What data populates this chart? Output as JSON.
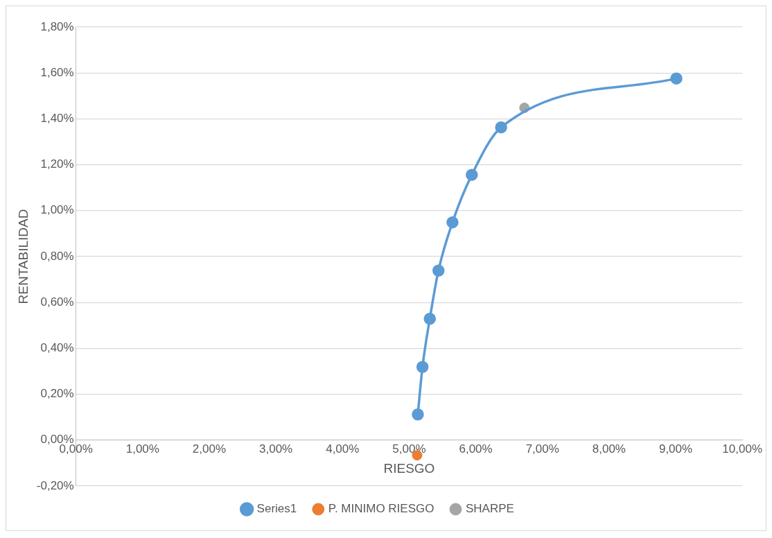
{
  "chart_data": {
    "type": "line",
    "xlabel": "RIESGO",
    "ylabel": "RENTABILIDAD",
    "xlim": [
      0,
      10
    ],
    "ylim": [
      -0.2,
      1.8
    ],
    "xticks": [
      {
        "value": 0,
        "label": "0,00%"
      },
      {
        "value": 1,
        "label": "1,00%"
      },
      {
        "value": 2,
        "label": "2,00%"
      },
      {
        "value": 3,
        "label": "3,00%"
      },
      {
        "value": 4,
        "label": "4,00%"
      },
      {
        "value": 5,
        "label": "5,00%"
      },
      {
        "value": 6,
        "label": "6,00%"
      },
      {
        "value": 7,
        "label": "7,00%"
      },
      {
        "value": 8,
        "label": "8,00%"
      },
      {
        "value": 9,
        "label": "9,00%"
      },
      {
        "value": 10,
        "label": "10,00%"
      }
    ],
    "yticks": [
      {
        "value": -0.2,
        "label": "-0,20%"
      },
      {
        "value": 0,
        "label": "0,00%"
      },
      {
        "value": 0.2,
        "label": "0,20%"
      },
      {
        "value": 0.4,
        "label": "0,40%"
      },
      {
        "value": 0.6,
        "label": "0,60%"
      },
      {
        "value": 0.8,
        "label": "0,80%"
      },
      {
        "value": 1,
        "label": "1,00%"
      },
      {
        "value": 1.2,
        "label": "1,20%"
      },
      {
        "value": 1.4,
        "label": "1,40%"
      },
      {
        "value": 1.6,
        "label": "1,60%"
      },
      {
        "value": 1.8,
        "label": "1,80%"
      }
    ],
    "grid": "y",
    "legend": "bottom",
    "marker": "circle",
    "series": [
      {
        "name": "Series1",
        "type": "line",
        "color": "#5b9bd5",
        "x": [
          5.13,
          5.2,
          5.31,
          5.44,
          5.65,
          5.94,
          6.38,
          9.01
        ],
        "values": [
          0.112,
          0.319,
          0.529,
          0.739,
          0.949,
          1.156,
          1.363,
          1.576
        ]
      },
      {
        "name": "P. MINIMO RIESGO",
        "type": "scatter",
        "color": "#ed7d31",
        "x": [
          5.12
        ],
        "values": [
          -0.066
        ]
      },
      {
        "name": "SHARPE",
        "type": "scatter",
        "color": "#a5a5a5",
        "x": [
          6.73
        ],
        "values": [
          1.448
        ]
      }
    ]
  }
}
